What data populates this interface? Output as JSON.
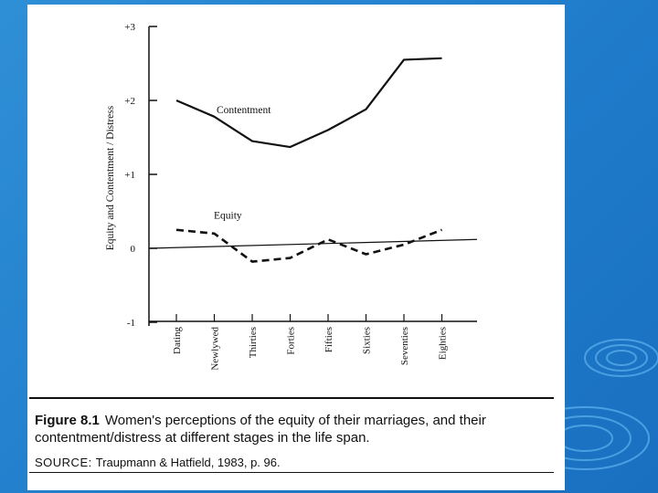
{
  "figure": {
    "label": "Figure 8.1",
    "caption_line1": "Women's perceptions of the equity of their marriages, and their",
    "caption_line2": "contentment/distress at different stages in the life span.",
    "source_label": "SOURCE:",
    "source_text": "Traupmann & Hatfield, 1983, p. 96."
  },
  "chart_data": {
    "type": "line",
    "title": "",
    "xlabel": "",
    "ylabel": "Equity and Contentment / Distress",
    "categories": [
      "Dating",
      "Newlywed",
      "Thirties",
      "Forties",
      "Fifties",
      "Sixties",
      "Seventies",
      "Eighties"
    ],
    "ylim": [
      -1,
      3
    ],
    "yticks": [
      "+3",
      "+2",
      "+1",
      "0",
      "-1"
    ],
    "series": [
      {
        "name": "Contentment",
        "values": [
          2.0,
          1.78,
          1.45,
          1.37,
          1.6,
          1.88,
          2.55,
          2.57
        ],
        "style": "solid"
      },
      {
        "name": "Equity",
        "values": [
          0.25,
          0.2,
          -0.18,
          -0.13,
          0.12,
          -0.08,
          0.05,
          0.25
        ],
        "style": "dashed"
      }
    ],
    "baseline": {
      "start": 0.0,
      "end": 0.12
    },
    "grid": false,
    "legend": "inline labels near lines",
    "colors": {
      "ink": "#111111",
      "slide_background": "#1f7ccb"
    }
  }
}
